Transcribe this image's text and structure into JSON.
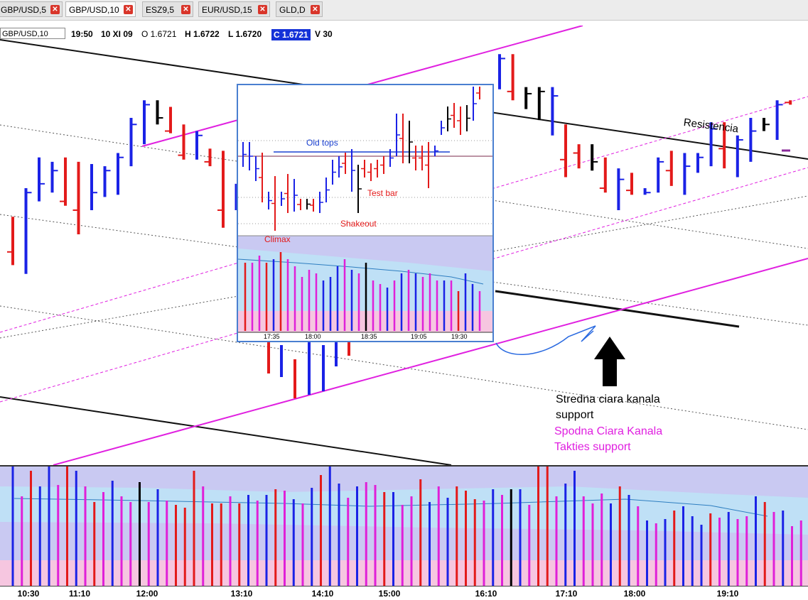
{
  "tabs": [
    {
      "label": "GBP/USD,5",
      "active": false
    },
    {
      "label": "GBP/USD,10",
      "active": true
    },
    {
      "label": "ESZ9,5",
      "active": false
    },
    {
      "label": "EUR/USD,15",
      "active": false
    },
    {
      "label": "GLD,D",
      "active": false
    }
  ],
  "tab_close_glyph": "✕",
  "infobar": {
    "symbol": "GBP/USD,10",
    "time": "19:50",
    "date": "10 XI 09",
    "open": "O 1.6721",
    "high": "H 1.6722",
    "low": "L 1.6720",
    "close": "C 1.6721",
    "volume": "V 30"
  },
  "annotations": {
    "resistencia": "Resistencia",
    "stredna_line1": "Stredna ciara kanala",
    "stredna_line2": "support",
    "spodna_line1": "Spodna Ciara Kanala",
    "spodna_line2": "Takties support"
  },
  "inset": {
    "old_tops": "Old tops",
    "test_bar": "Test bar",
    "shakeout": "Shakeout",
    "climax": "Climax",
    "x_ticks": [
      "17:35",
      "18:00",
      "18:35",
      "19:05",
      "19:30"
    ]
  },
  "colors": {
    "up": "#1a22e6",
    "down": "#e31a1a",
    "neutral": "#000000",
    "channel": "#e020e0",
    "volume_high": "#e020d8",
    "band1": "#f6c6e0",
    "band2": "#c9c9f2",
    "band3": "#bfe0f6"
  },
  "chart_data": {
    "type": "bar",
    "instrument": "GBP/USD,10",
    "x_ticks": [
      "10:30",
      "11:10",
      "12:00",
      "13:10",
      "14:10",
      "15:00",
      "16:10",
      "17:10",
      "18:00",
      "19:10"
    ],
    "price_bars": [
      {
        "h": 0.435,
        "l": 0.545,
        "c": 0.515,
        "d": "down"
      },
      {
        "h": 0.37,
        "l": 0.565,
        "c": 0.38,
        "d": "up"
      },
      {
        "h": 0.3,
        "l": 0.4,
        "c": 0.36,
        "d": "up"
      },
      {
        "h": 0.31,
        "l": 0.38,
        "c": 0.33,
        "d": "up"
      },
      {
        "h": 0.3,
        "l": 0.41,
        "c": 0.4,
        "d": "down"
      },
      {
        "h": 0.31,
        "l": 0.475,
        "c": 0.42,
        "d": "down"
      },
      {
        "h": 0.315,
        "l": 0.42,
        "c": 0.38,
        "d": "up"
      },
      {
        "h": 0.32,
        "l": 0.39,
        "c": 0.33,
        "d": "up"
      },
      {
        "h": 0.29,
        "l": 0.385,
        "c": 0.3,
        "d": "up"
      },
      {
        "h": 0.21,
        "l": 0.32,
        "c": 0.225,
        "d": "up"
      },
      {
        "h": 0.17,
        "l": 0.27,
        "c": 0.18,
        "d": "up"
      },
      {
        "h": 0.17,
        "l": 0.225,
        "c": 0.21,
        "d": "neutral"
      },
      {
        "h": 0.185,
        "l": 0.245,
        "c": 0.24,
        "d": "down"
      },
      {
        "h": 0.225,
        "l": 0.305,
        "c": 0.295,
        "d": "down"
      },
      {
        "h": 0.24,
        "l": 0.305,
        "c": 0.25,
        "d": "up"
      },
      {
        "h": 0.28,
        "l": 0.32,
        "c": 0.31,
        "d": "down"
      },
      {
        "h": 0.285,
        "l": 0.46,
        "c": 0.42,
        "d": "down"
      },
      {
        "h": 0.36,
        "l": 0.42,
        "c": 0.39,
        "d": "up"
      }
    ],
    "price_bars_right": [
      {
        "h": 0.065,
        "l": 0.145,
        "c": 0.075,
        "d": "up"
      },
      {
        "h": 0.065,
        "l": 0.17,
        "c": 0.15,
        "d": "down"
      },
      {
        "h": 0.14,
        "l": 0.19,
        "c": 0.155,
        "d": "neutral"
      },
      {
        "h": 0.14,
        "l": 0.215,
        "c": 0.15,
        "d": "neutral"
      },
      {
        "h": 0.14,
        "l": 0.25,
        "c": 0.16,
        "d": "up"
      },
      {
        "h": 0.225,
        "l": 0.345,
        "c": 0.305,
        "d": "down"
      },
      {
        "h": 0.27,
        "l": 0.325,
        "c": 0.29,
        "d": "down"
      },
      {
        "h": 0.27,
        "l": 0.33,
        "c": 0.31,
        "d": "neutral"
      },
      {
        "h": 0.3,
        "l": 0.38,
        "c": 0.37,
        "d": "down"
      },
      {
        "h": 0.325,
        "l": 0.42,
        "c": 0.35,
        "d": "up"
      },
      {
        "h": 0.335,
        "l": 0.385,
        "c": 0.375,
        "d": "down"
      },
      {
        "h": 0.37,
        "l": 0.385,
        "c": 0.38,
        "d": "up"
      },
      {
        "h": 0.3,
        "l": 0.38,
        "c": 0.31,
        "d": "up"
      },
      {
        "h": 0.285,
        "l": 0.365,
        "c": 0.33,
        "d": "down"
      },
      {
        "h": 0.29,
        "l": 0.385,
        "c": 0.32,
        "d": "up"
      },
      {
        "h": 0.29,
        "l": 0.335,
        "c": 0.3,
        "d": "up"
      },
      {
        "h": 0.22,
        "l": 0.32,
        "c": 0.235,
        "d": "up"
      },
      {
        "h": 0.22,
        "l": 0.325,
        "c": 0.28,
        "d": "down"
      },
      {
        "h": 0.25,
        "l": 0.345,
        "c": 0.26,
        "d": "up"
      },
      {
        "h": 0.21,
        "l": 0.31,
        "c": 0.24,
        "d": "up"
      },
      {
        "h": 0.21,
        "l": 0.24,
        "c": 0.225,
        "d": "neutral"
      },
      {
        "h": 0.17,
        "l": 0.26,
        "c": 0.18,
        "d": "up"
      },
      {
        "h": 0.17,
        "l": 0.18,
        "c": 0.175,
        "d": "down"
      }
    ],
    "volume": [
      {
        "v": 0.84,
        "d": "up"
      },
      {
        "v": 0.63,
        "d": "high"
      },
      {
        "v": 0.81,
        "d": "down"
      },
      {
        "v": 0.7,
        "d": "up"
      },
      {
        "v": 0.85,
        "d": "up"
      },
      {
        "v": 0.71,
        "d": "high"
      },
      {
        "v": 0.88,
        "d": "down"
      },
      {
        "v": 0.81,
        "d": "up"
      },
      {
        "v": 0.7,
        "d": "high"
      },
      {
        "v": 0.59,
        "d": "down"
      },
      {
        "v": 0.66,
        "d": "high"
      },
      {
        "v": 0.74,
        "d": "up"
      },
      {
        "v": 0.63,
        "d": "high"
      },
      {
        "v": 0.59,
        "d": "high"
      },
      {
        "v": 0.73,
        "d": "neutral"
      },
      {
        "v": 0.59,
        "d": "high"
      },
      {
        "v": 0.68,
        "d": "up"
      },
      {
        "v": 0.6,
        "d": "high"
      },
      {
        "v": 0.57,
        "d": "down"
      },
      {
        "v": 0.55,
        "d": "down"
      },
      {
        "v": 0.81,
        "d": "down"
      },
      {
        "v": 0.7,
        "d": "high"
      },
      {
        "v": 0.58,
        "d": "down"
      },
      {
        "v": 0.58,
        "d": "down"
      },
      {
        "v": 0.63,
        "d": "high"
      },
      {
        "v": 0.58,
        "d": "down"
      },
      {
        "v": 0.64,
        "d": "up"
      },
      {
        "v": 0.6,
        "d": "high"
      },
      {
        "v": 0.64,
        "d": "up"
      },
      {
        "v": 0.68,
        "d": "down"
      },
      {
        "v": 0.67,
        "d": "high"
      },
      {
        "v": 0.61,
        "d": "up"
      },
      {
        "v": 0.58,
        "d": "high"
      },
      {
        "v": 0.69,
        "d": "up"
      },
      {
        "v": 0.78,
        "d": "down"
      },
      {
        "v": 0.89,
        "d": "up"
      },
      {
        "v": 0.72,
        "d": "up"
      },
      {
        "v": 0.62,
        "d": "high"
      },
      {
        "v": 0.7,
        "d": "up"
      },
      {
        "v": 0.73,
        "d": "high"
      },
      {
        "v": 0.71,
        "d": "high"
      },
      {
        "v": 0.66,
        "d": "down"
      },
      {
        "v": 0.66,
        "d": "up"
      },
      {
        "v": 0.57,
        "d": "high"
      },
      {
        "v": 0.63,
        "d": "high"
      },
      {
        "v": 0.75,
        "d": "down"
      },
      {
        "v": 0.59,
        "d": "up"
      },
      {
        "v": 0.7,
        "d": "high"
      },
      {
        "v": 0.62,
        "d": "up"
      },
      {
        "v": 0.7,
        "d": "down"
      },
      {
        "v": 0.67,
        "d": "down"
      },
      {
        "v": 0.61,
        "d": "down"
      },
      {
        "v": 0.6,
        "d": "high"
      },
      {
        "v": 0.68,
        "d": "up"
      },
      {
        "v": 0.64,
        "d": "high"
      },
      {
        "v": 0.68,
        "d": "neutral"
      },
      {
        "v": 0.68,
        "d": "up"
      },
      {
        "v": 0.57,
        "d": "high"
      },
      {
        "v": 0.86,
        "d": "down"
      },
      {
        "v": 0.86,
        "d": "down"
      },
      {
        "v": 0.63,
        "d": "high"
      },
      {
        "v": 0.72,
        "d": "up"
      },
      {
        "v": 0.81,
        "d": "up"
      },
      {
        "v": 0.63,
        "d": "high"
      },
      {
        "v": 0.58,
        "d": "high"
      },
      {
        "v": 0.65,
        "d": "high"
      },
      {
        "v": 0.58,
        "d": "up"
      },
      {
        "v": 0.7,
        "d": "down"
      },
      {
        "v": 0.64,
        "d": "up"
      },
      {
        "v": 0.56,
        "d": "high"
      },
      {
        "v": 0.46,
        "d": "up"
      },
      {
        "v": 0.44,
        "d": "high"
      },
      {
        "v": 0.47,
        "d": "up"
      },
      {
        "v": 0.53,
        "d": "down"
      },
      {
        "v": 0.56,
        "d": "up"
      },
      {
        "v": 0.49,
        "d": "up"
      },
      {
        "v": 0.43,
        "d": "up"
      },
      {
        "v": 0.51,
        "d": "down"
      },
      {
        "v": 0.48,
        "d": "high"
      },
      {
        "v": 0.52,
        "d": "up"
      },
      {
        "v": 0.47,
        "d": "high"
      },
      {
        "v": 0.49,
        "d": "high"
      },
      {
        "v": 0.63,
        "d": "up"
      },
      {
        "v": 0.59,
        "d": "down"
      },
      {
        "v": 0.52,
        "d": "high"
      },
      {
        "v": 0.53,
        "d": "up"
      },
      {
        "v": 0.42,
        "d": "high"
      },
      {
        "v": 0.46,
        "d": "high"
      },
      {
        "v": 0.43,
        "d": "high"
      }
    ]
  }
}
